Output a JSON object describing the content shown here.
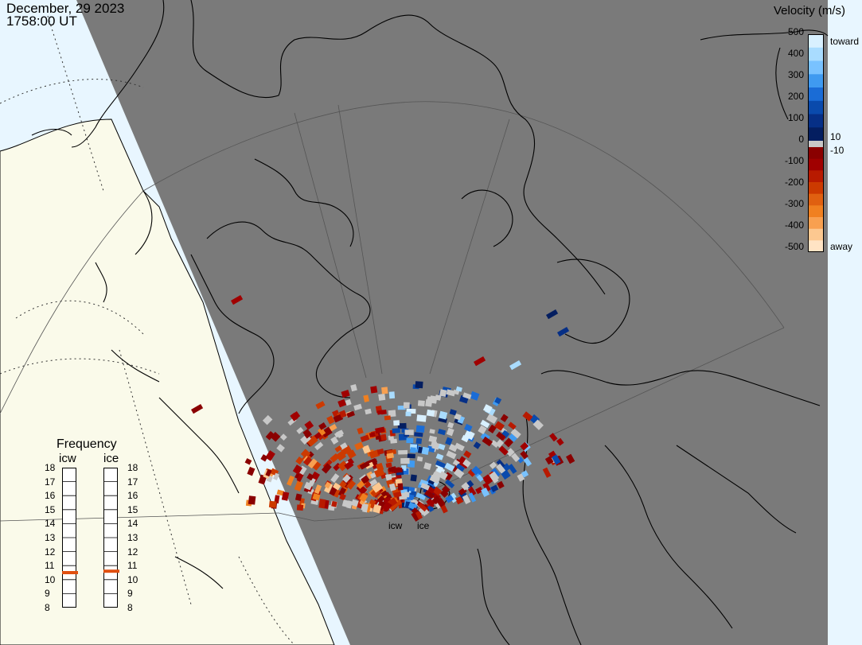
{
  "header": {
    "date": "December, 29 2023",
    "time": "1758:00 UT"
  },
  "velocity_legend": {
    "title": "Velocity (m/s)",
    "left_labels": [
      "500",
      "400",
      "300",
      "200",
      "100",
      "0",
      "-100",
      "-200",
      "-300",
      "-400",
      "-500"
    ],
    "right_labels": [
      "toward",
      "10",
      "-10",
      "away"
    ],
    "colors_toward": [
      "#d8f0ff",
      "#a9dcff",
      "#79c2ff",
      "#3f9af0",
      "#1a6cd6",
      "#0a4aac",
      "#062f86",
      "#041e60"
    ],
    "colors_away": [
      "#8a0000",
      "#a00000",
      "#b81a00",
      "#cc3a00",
      "#e06010",
      "#f08020",
      "#f8a050",
      "#fcc890",
      "#ffe3c4"
    ],
    "near_zero_color": "#c8c8c8"
  },
  "frequency_panel": {
    "title": "Frequency",
    "radars": [
      {
        "name": "icw",
        "value": 10.5
      },
      {
        "name": "ice",
        "value": 10.6
      }
    ],
    "scale": [
      "18",
      "17",
      "16",
      "15",
      "14",
      "13",
      "12",
      "11",
      "10",
      "9",
      "8"
    ],
    "marker_color": "#e05010"
  },
  "radar_labels": [
    "icw",
    "ice"
  ],
  "map_colors": {
    "night": "#7a7a7a",
    "day_land": "#fafaea",
    "day_ocean": "#e8f6ff",
    "coast": "#000000"
  }
}
